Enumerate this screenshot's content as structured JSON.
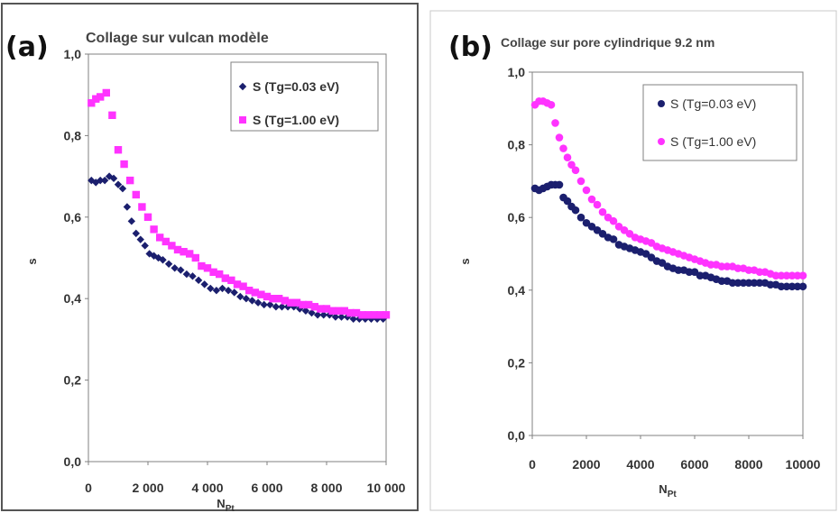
{
  "colors": {
    "series_low": "#1b1f6e",
    "series_high": "#ff33ff",
    "frame_a": "#555555",
    "frame_b": "#c8c8c8"
  },
  "chart_data": [
    {
      "type": "scatter",
      "panel_label": "(a)",
      "title": "Collage sur vulcan modèle",
      "xlabel": "N",
      "xlabel_sub": "Pt",
      "ylabel": "s",
      "xlim": [
        0,
        10000
      ],
      "ylim": [
        0,
        1.0
      ],
      "xticks": [
        0,
        2000,
        4000,
        6000,
        8000,
        10000
      ],
      "xtick_labels": [
        "0",
        "2 000",
        "4 000",
        "6 000",
        "8 000",
        "10 000"
      ],
      "yticks": [
        0,
        0.2,
        0.4,
        0.6,
        0.8,
        1.0
      ],
      "ytick_labels": [
        "0,0",
        "0,2",
        "0,4",
        "0,6",
        "0,8",
        "1,0"
      ],
      "grid": false,
      "legend_position": "top-right",
      "marker_low": "diamond",
      "marker_high": "square",
      "series": [
        {
          "name": "S (Tg=0.03 eV)",
          "points": [
            [
              100,
              0.69
            ],
            [
              250,
              0.685
            ],
            [
              400,
              0.69
            ],
            [
              550,
              0.69
            ],
            [
              700,
              0.7
            ],
            [
              850,
              0.695
            ],
            [
              1000,
              0.68
            ],
            [
              1150,
              0.67
            ],
            [
              1300,
              0.625
            ],
            [
              1450,
              0.59
            ],
            [
              1600,
              0.56
            ],
            [
              1750,
              0.545
            ],
            [
              1900,
              0.53
            ],
            [
              2050,
              0.51
            ],
            [
              2200,
              0.505
            ],
            [
              2350,
              0.5
            ],
            [
              2500,
              0.495
            ],
            [
              2700,
              0.485
            ],
            [
              2900,
              0.475
            ],
            [
              3100,
              0.47
            ],
            [
              3300,
              0.46
            ],
            [
              3500,
              0.455
            ],
            [
              3700,
              0.445
            ],
            [
              3900,
              0.435
            ],
            [
              4100,
              0.425
            ],
            [
              4300,
              0.42
            ],
            [
              4500,
              0.425
            ],
            [
              4700,
              0.42
            ],
            [
              4900,
              0.415
            ],
            [
              5100,
              0.405
            ],
            [
              5300,
              0.4
            ],
            [
              5500,
              0.395
            ],
            [
              5700,
              0.39
            ],
            [
              5900,
              0.385
            ],
            [
              6100,
              0.385
            ],
            [
              6300,
              0.38
            ],
            [
              6500,
              0.38
            ],
            [
              6700,
              0.38
            ],
            [
              6900,
              0.38
            ],
            [
              7100,
              0.375
            ],
            [
              7300,
              0.37
            ],
            [
              7500,
              0.365
            ],
            [
              7700,
              0.36
            ],
            [
              7900,
              0.36
            ],
            [
              8100,
              0.36
            ],
            [
              8300,
              0.355
            ],
            [
              8500,
              0.355
            ],
            [
              8700,
              0.355
            ],
            [
              8900,
              0.35
            ],
            [
              9100,
              0.35
            ],
            [
              9300,
              0.35
            ],
            [
              9500,
              0.35
            ],
            [
              9700,
              0.35
            ],
            [
              9900,
              0.35
            ]
          ]
        },
        {
          "name": "S (Tg=1.00 eV)",
          "points": [
            [
              100,
              0.88
            ],
            [
              250,
              0.89
            ],
            [
              400,
              0.895
            ],
            [
              600,
              0.905
            ],
            [
              800,
              0.85
            ],
            [
              1000,
              0.765
            ],
            [
              1200,
              0.73
            ],
            [
              1400,
              0.69
            ],
            [
              1600,
              0.655
            ],
            [
              1800,
              0.625
            ],
            [
              2000,
              0.6
            ],
            [
              2200,
              0.57
            ],
            [
              2400,
              0.55
            ],
            [
              2600,
              0.54
            ],
            [
              2800,
              0.53
            ],
            [
              3000,
              0.52
            ],
            [
              3200,
              0.515
            ],
            [
              3400,
              0.51
            ],
            [
              3600,
              0.5
            ],
            [
              3800,
              0.48
            ],
            [
              4000,
              0.475
            ],
            [
              4200,
              0.465
            ],
            [
              4400,
              0.46
            ],
            [
              4600,
              0.45
            ],
            [
              4800,
              0.445
            ],
            [
              5000,
              0.435
            ],
            [
              5200,
              0.43
            ],
            [
              5400,
              0.42
            ],
            [
              5600,
              0.415
            ],
            [
              5800,
              0.41
            ],
            [
              6000,
              0.405
            ],
            [
              6200,
              0.4
            ],
            [
              6400,
              0.4
            ],
            [
              6600,
              0.395
            ],
            [
              6800,
              0.39
            ],
            [
              7000,
              0.39
            ],
            [
              7200,
              0.385
            ],
            [
              7400,
              0.385
            ],
            [
              7600,
              0.38
            ],
            [
              7800,
              0.375
            ],
            [
              8000,
              0.375
            ],
            [
              8200,
              0.37
            ],
            [
              8400,
              0.37
            ],
            [
              8600,
              0.37
            ],
            [
              8800,
              0.365
            ],
            [
              9000,
              0.365
            ],
            [
              9200,
              0.36
            ],
            [
              9400,
              0.36
            ],
            [
              9600,
              0.36
            ],
            [
              9800,
              0.36
            ],
            [
              10000,
              0.36
            ]
          ]
        }
      ]
    },
    {
      "type": "scatter",
      "panel_label": "(b)",
      "title": "Collage  sur pore cylindrique 9.2 nm",
      "xlabel": "N",
      "xlabel_sub": "Pt",
      "ylabel": "s",
      "xlim": [
        0,
        10000
      ],
      "ylim": [
        0,
        1.0
      ],
      "xticks": [
        0,
        2000,
        4000,
        6000,
        8000,
        10000
      ],
      "xtick_labels": [
        "0",
        "2000",
        "4000",
        "6000",
        "8000",
        "10000"
      ],
      "yticks": [
        0,
        0.2,
        0.4,
        0.6,
        0.8,
        1.0
      ],
      "ytick_labels": [
        "0,0",
        "0,2",
        "0,4",
        "0,6",
        "0,8",
        "1,0"
      ],
      "grid": false,
      "legend_position": "top-right",
      "marker_low": "circle",
      "marker_high": "circle",
      "series": [
        {
          "name": "S (Tg=0.03 eV)",
          "points": [
            [
              100,
              0.68
            ],
            [
              250,
              0.675
            ],
            [
              400,
              0.68
            ],
            [
              550,
              0.685
            ],
            [
              700,
              0.69
            ],
            [
              850,
              0.69
            ],
            [
              1000,
              0.69
            ],
            [
              1150,
              0.655
            ],
            [
              1300,
              0.645
            ],
            [
              1450,
              0.63
            ],
            [
              1600,
              0.62
            ],
            [
              1800,
              0.6
            ],
            [
              2000,
              0.585
            ],
            [
              2200,
              0.575
            ],
            [
              2400,
              0.565
            ],
            [
              2600,
              0.555
            ],
            [
              2800,
              0.545
            ],
            [
              3000,
              0.54
            ],
            [
              3200,
              0.525
            ],
            [
              3400,
              0.52
            ],
            [
              3600,
              0.515
            ],
            [
              3800,
              0.51
            ],
            [
              4000,
              0.505
            ],
            [
              4200,
              0.5
            ],
            [
              4400,
              0.49
            ],
            [
              4600,
              0.48
            ],
            [
              4800,
              0.475
            ],
            [
              5000,
              0.465
            ],
            [
              5200,
              0.46
            ],
            [
              5400,
              0.455
            ],
            [
              5600,
              0.455
            ],
            [
              5800,
              0.45
            ],
            [
              6000,
              0.45
            ],
            [
              6200,
              0.44
            ],
            [
              6400,
              0.44
            ],
            [
              6600,
              0.435
            ],
            [
              6800,
              0.43
            ],
            [
              7000,
              0.425
            ],
            [
              7200,
              0.425
            ],
            [
              7400,
              0.42
            ],
            [
              7600,
              0.42
            ],
            [
              7800,
              0.42
            ],
            [
              8000,
              0.42
            ],
            [
              8200,
              0.42
            ],
            [
              8400,
              0.42
            ],
            [
              8600,
              0.42
            ],
            [
              8800,
              0.415
            ],
            [
              9000,
              0.415
            ],
            [
              9200,
              0.41
            ],
            [
              9400,
              0.41
            ],
            [
              9600,
              0.41
            ],
            [
              9800,
              0.41
            ],
            [
              10000,
              0.41
            ]
          ]
        },
        {
          "name": "S (Tg=1.00 eV)",
          "points": [
            [
              100,
              0.91
            ],
            [
              250,
              0.92
            ],
            [
              400,
              0.92
            ],
            [
              550,
              0.915
            ],
            [
              700,
              0.91
            ],
            [
              850,
              0.86
            ],
            [
              1000,
              0.82
            ],
            [
              1150,
              0.79
            ],
            [
              1300,
              0.765
            ],
            [
              1450,
              0.745
            ],
            [
              1600,
              0.73
            ],
            [
              1800,
              0.7
            ],
            [
              2000,
              0.675
            ],
            [
              2200,
              0.65
            ],
            [
              2400,
              0.635
            ],
            [
              2600,
              0.615
            ],
            [
              2800,
              0.6
            ],
            [
              3000,
              0.59
            ],
            [
              3200,
              0.575
            ],
            [
              3400,
              0.565
            ],
            [
              3600,
              0.555
            ],
            [
              3800,
              0.545
            ],
            [
              4000,
              0.54
            ],
            [
              4200,
              0.535
            ],
            [
              4400,
              0.53
            ],
            [
              4600,
              0.52
            ],
            [
              4800,
              0.515
            ],
            [
              5000,
              0.51
            ],
            [
              5200,
              0.505
            ],
            [
              5400,
              0.5
            ],
            [
              5600,
              0.495
            ],
            [
              5800,
              0.49
            ],
            [
              6000,
              0.485
            ],
            [
              6200,
              0.48
            ],
            [
              6400,
              0.475
            ],
            [
              6600,
              0.47
            ],
            [
              6800,
              0.47
            ],
            [
              7000,
              0.465
            ],
            [
              7200,
              0.465
            ],
            [
              7400,
              0.465
            ],
            [
              7600,
              0.46
            ],
            [
              7800,
              0.46
            ],
            [
              8000,
              0.455
            ],
            [
              8200,
              0.455
            ],
            [
              8400,
              0.45
            ],
            [
              8600,
              0.45
            ],
            [
              8800,
              0.445
            ],
            [
              9000,
              0.44
            ],
            [
              9200,
              0.44
            ],
            [
              9400,
              0.44
            ],
            [
              9600,
              0.44
            ],
            [
              9800,
              0.44
            ],
            [
              10000,
              0.44
            ]
          ]
        }
      ]
    }
  ]
}
